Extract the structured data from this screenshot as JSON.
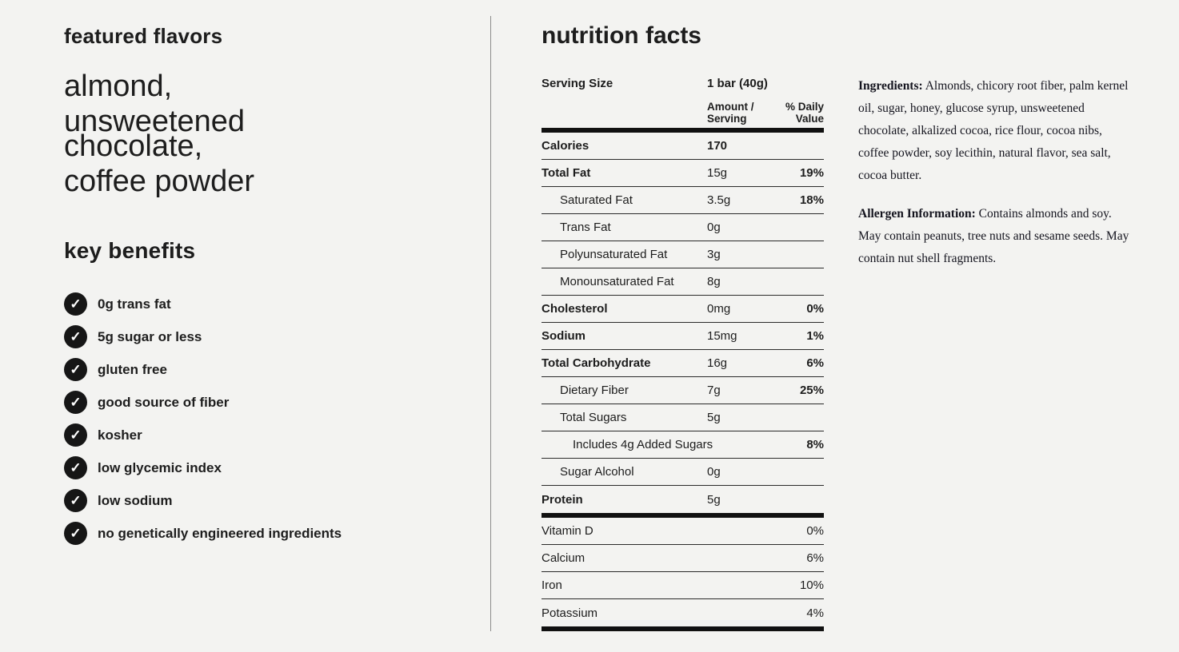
{
  "left": {
    "featured_flavors_title": "featured flavors",
    "flavors": [
      "almond,",
      "unsweetened chocolate,",
      "coffee powder"
    ],
    "key_benefits_title": "key benefits",
    "benefits": [
      "0g trans fat",
      "5g sugar or less",
      "gluten free",
      "good source of fiber",
      "kosher",
      "low glycemic index",
      "low sodium",
      "no genetically engineered ingredients"
    ]
  },
  "icons": {
    "check": "✓"
  },
  "nutrition": {
    "title": "nutrition facts",
    "serving_size_label": "Serving Size",
    "serving_size_value": "1 bar (40g)",
    "amount_header": "Amount / Serving",
    "daily_value_header": "% Daily Value",
    "rows": [
      {
        "label": "Calories",
        "amount": "170",
        "dv": ""
      },
      {
        "label": "Total Fat",
        "amount": "15g",
        "dv": "19%"
      },
      {
        "label": "Saturated Fat",
        "amount": "3.5g",
        "dv": "18%"
      },
      {
        "label": "Trans Fat",
        "amount": "0g",
        "dv": ""
      },
      {
        "label": "Polyunsaturated Fat",
        "amount": "3g",
        "dv": ""
      },
      {
        "label": "Monounsaturated Fat",
        "amount": "8g",
        "dv": ""
      },
      {
        "label": "Cholesterol",
        "amount": "0mg",
        "dv": "0%"
      },
      {
        "label": "Sodium",
        "amount": "15mg",
        "dv": "1%"
      },
      {
        "label": "Total Carbohydrate",
        "amount": "16g",
        "dv": "6%"
      },
      {
        "label": "Dietary Fiber",
        "amount": "7g",
        "dv": "25%"
      },
      {
        "label": "Total Sugars",
        "amount": "5g",
        "dv": ""
      },
      {
        "label": "Includes 4g Added Sugars",
        "amount": "",
        "dv": "8%"
      },
      {
        "label": "Sugar Alcohol",
        "amount": "0g",
        "dv": ""
      },
      {
        "label": "Protein",
        "amount": "5g",
        "dv": ""
      }
    ],
    "vitamins": [
      {
        "label": "Vitamin D",
        "dv": "0%"
      },
      {
        "label": "Calcium",
        "dv": "6%"
      },
      {
        "label": "Iron",
        "dv": "10%"
      },
      {
        "label": "Potassium",
        "dv": "4%"
      }
    ]
  },
  "details": {
    "ingredients_label": "Ingredients:",
    "ingredients_text": " Almonds, chicory root fiber, palm kernel oil, sugar, honey, glucose syrup, unsweetened chocolate, alkalized cocoa, rice flour, cocoa nibs, coffee powder, soy lecithin, natural flavor, sea salt, cocoa butter.",
    "allergen_label": "Allergen Information:",
    "allergen_text": " Contains almonds and soy. May contain peanuts, tree nuts and sesame seeds. May contain nut shell fragments."
  },
  "colors": {
    "background": "#f3f3f1",
    "text": "#1d1d1d",
    "divider": "#8c8c8c",
    "check_circle": "#161616",
    "check_mark": "#ffffff",
    "rule_thick": "#111111",
    "rule_thin": "#2a2a2a"
  }
}
